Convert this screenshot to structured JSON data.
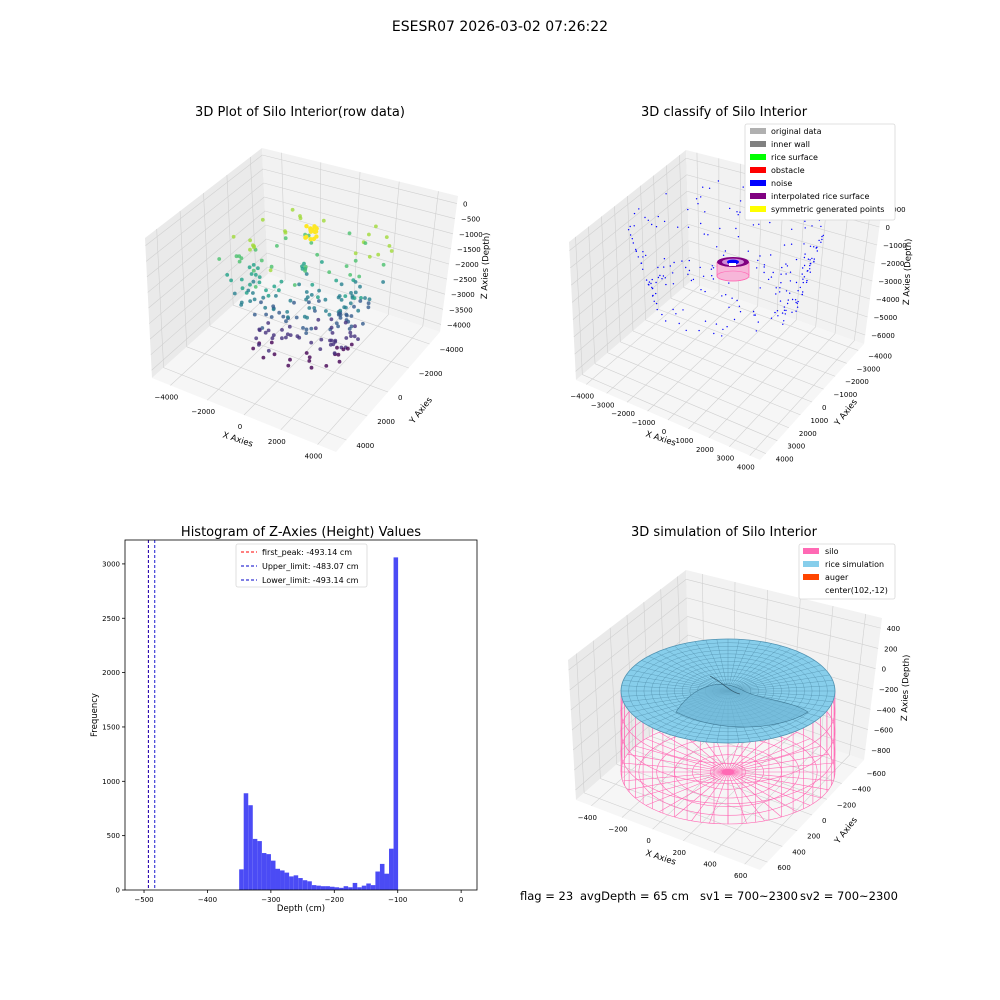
{
  "suptitle": "ESESR07 2026-03-02 07:26:22",
  "colors": {
    "histogram_bar": "#4b4bf5",
    "first_peak_line": "#ff0000",
    "limit_line": "#0000c8",
    "silo": "#ff69b4",
    "rice": "#87ceeb",
    "auger": "#ff4500",
    "original_data": "#b0b0b0",
    "inner_wall": "#808080",
    "rice_surface": "#00ff00",
    "obstacle": "#ff0000",
    "noise": "#0000ff",
    "interpolated_rice_surface": "#800080",
    "symmetric_generated_points": "#ffff00"
  },
  "chart_data": [
    {
      "type": "scatter",
      "subtype": "3d",
      "title": "3D Plot of Silo Interior(row data)",
      "xlabel": "X Axies",
      "ylabel": "Y Axies",
      "zlabel": "Z Axies (Depth)",
      "x_ticks": [
        "−4000",
        "−2000",
        "0",
        "2000",
        "4000"
      ],
      "y_ticks": [
        "4000",
        "2000",
        "0",
        "−2000",
        "−4000"
      ],
      "z_ticks": [
        "0",
        "−500",
        "−1000",
        "−1500",
        "−2000",
        "−2500",
        "−3000",
        "−3500",
        "−4000"
      ],
      "xlim": [
        -4500,
        4500
      ],
      "ylim": [
        -4500,
        4500
      ],
      "zlim": [
        -4000,
        0
      ],
      "colormap": "viridis"
    },
    {
      "type": "scatter",
      "subtype": "3d",
      "title": "3D classify of Silo Interior",
      "xlabel": "X Axies",
      "ylabel": "Y Axies",
      "zlabel": "Z Axies (Depth)",
      "x_ticks": [
        "−4000",
        "−3000",
        "−2000",
        "−1000",
        "0",
        "1000",
        "2000",
        "3000",
        "4000"
      ],
      "y_ticks": [
        "4000",
        "3000",
        "2000",
        "1000",
        "0",
        "−1000",
        "−2000",
        "−3000",
        "−4000"
      ],
      "z_ticks": [
        "1000",
        "0",
        "−1000",
        "−2000",
        "−3000",
        "−4000",
        "−5000",
        "−6000"
      ],
      "legend": [
        "original data",
        "inner wall",
        "rice surface",
        "obstacle",
        "noise",
        "interpolated rice surface",
        "symmetric generated points"
      ],
      "legend_placement": "top-right"
    },
    {
      "type": "bar",
      "subtype": "histogram",
      "title": "Histogram of Z-Axies (Height) Values",
      "xlabel": "Depth (cm)",
      "ylabel": "Frequency",
      "xlim": [
        -530,
        25
      ],
      "ylim": [
        0,
        3220
      ],
      "x_ticks": [
        -500,
        -400,
        -300,
        -200,
        -100,
        0
      ],
      "x_tick_labels": [
        "−500",
        "−400",
        "−300",
        "−200",
        "−100",
        "0"
      ],
      "y_ticks": [
        0,
        500,
        1000,
        1500,
        2000,
        2500,
        3000
      ],
      "bin_start": -350,
      "bin_width": 7.16,
      "values": [
        190,
        890,
        780,
        470,
        450,
        340,
        330,
        270,
        195,
        180,
        160,
        125,
        135,
        110,
        90,
        80,
        45,
        40,
        35,
        35,
        30,
        25,
        20,
        35,
        25,
        65,
        25,
        40,
        60,
        45,
        170,
        240,
        150,
        380,
        3060
      ],
      "vlines": [
        {
          "name": "first_peak: -493.14 cm",
          "x": -493.14,
          "style": "first_peak"
        },
        {
          "name": "Upper_limit: -483.07 cm",
          "x": -483.07,
          "style": "limit"
        },
        {
          "name": "Lower_limit: -493.14 cm",
          "x": -493.14,
          "style": "limit"
        }
      ],
      "legend_placement": "upper-center"
    },
    {
      "type": "area",
      "subtype": "3d-surface",
      "title": "3D simulation of Silo Interior",
      "xlabel": "X Axies",
      "ylabel": "Y Axies",
      "zlabel": "Z Axies (Depth)",
      "x_ticks": [
        "−400",
        "−200",
        "0",
        "200",
        "400",
        "600"
      ],
      "y_ticks": [
        "600",
        "400",
        "200",
        "0",
        "−200",
        "−400",
        "−600"
      ],
      "z_ticks": [
        "400",
        "200",
        "0",
        "−200",
        "−400",
        "−600",
        "−800"
      ],
      "legend": [
        "silo",
        "rice simulation",
        "auger",
        "center(102,-12)"
      ],
      "legend_placement": "top-right"
    }
  ],
  "status": {
    "flag": "flag = 23",
    "avg": "avgDepth = 65 cm",
    "sv1": "sv1 = 700~2300",
    "sv2": "sv2 = 700~2300"
  }
}
